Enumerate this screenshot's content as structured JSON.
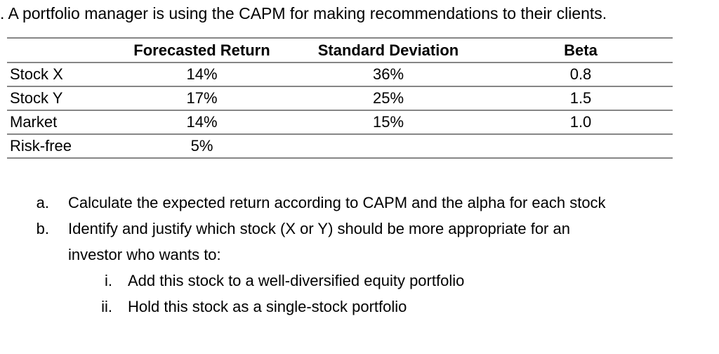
{
  "title": ". A portfolio manager is using the CAPM for making recommendations to their clients.",
  "table": {
    "headers": [
      "",
      "Forecasted Return",
      "Standard Deviation",
      "Beta"
    ],
    "rows": [
      {
        "label": "Stock X",
        "forecasted_return": "14%",
        "standard_deviation": "36%",
        "beta": "0.8"
      },
      {
        "label": "Stock Y",
        "forecasted_return": "17%",
        "standard_deviation": "25%",
        "beta": "1.5"
      },
      {
        "label": "Market",
        "forecasted_return": "14%",
        "standard_deviation": "15%",
        "beta": "1.0"
      },
      {
        "label": "Risk-free",
        "forecasted_return": "5%",
        "standard_deviation": "",
        "beta": ""
      }
    ]
  },
  "questions": [
    {
      "marker": "a.",
      "lines": [
        "Calculate the expected return according to CAPM and the alpha for each stock"
      ]
    },
    {
      "marker": "b.",
      "lines": [
        "Identify and justify which stock (X or Y) should be more appropriate for an",
        "investor who wants to:"
      ]
    }
  ],
  "subquestions": [
    {
      "marker": "i.",
      "text": "Add this stock to a well-diversified equity portfolio"
    },
    {
      "marker": "ii.",
      "text": "Hold this stock as a single-stock portfolio"
    }
  ],
  "colors": {
    "background": "#ffffff",
    "text": "#000000",
    "table_border": "#868686"
  }
}
